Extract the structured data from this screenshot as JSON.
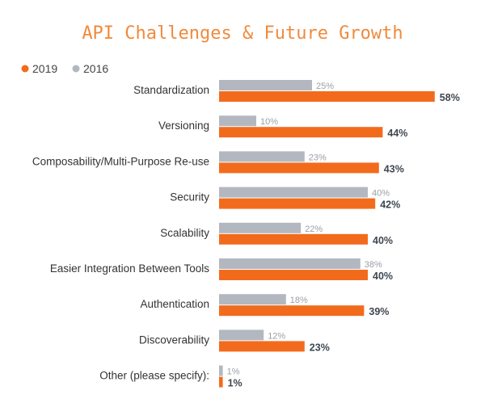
{
  "chart_data": {
    "type": "bar",
    "orientation": "horizontal",
    "title": "API Challenges & Future Growth",
    "legend_position": "top-left",
    "categories": [
      "Standardization",
      "Versioning",
      "Composability/Multi-Purpose Re-use",
      "Security",
      "Scalability",
      "Easier Integration Between Tools",
      "Authentication",
      "Discoverability",
      "Other (please specify):"
    ],
    "series": [
      {
        "name": "2016",
        "values": [
          25,
          10,
          23,
          40,
          22,
          38,
          18,
          12,
          1
        ],
        "color": "#b3b8c0",
        "labels": [
          "25%",
          "10%",
          "23%",
          "40%",
          "22%",
          "38%",
          "18%",
          "12%",
          "1%"
        ]
      },
      {
        "name": "2019",
        "values": [
          58,
          44,
          43,
          42,
          40,
          40,
          39,
          23,
          1
        ],
        "color": "#f26b1d",
        "labels": [
          "58%",
          "44%",
          "43%",
          "42%",
          "40%",
          "40%",
          "39%",
          "23%",
          "1%"
        ]
      }
    ],
    "legend_order": [
      "2019",
      "2016"
    ],
    "grid": false,
    "title_color": "#f08a3c"
  }
}
